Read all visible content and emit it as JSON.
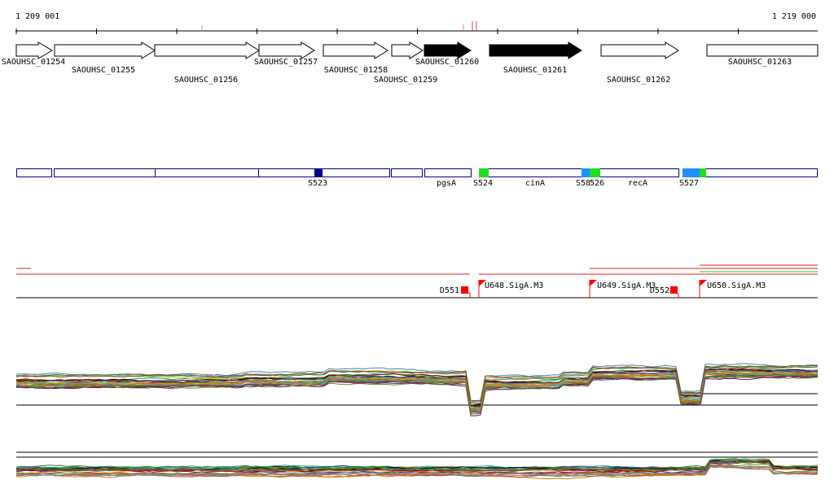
{
  "ruler": {
    "start_label": "1 209 001",
    "end_label": "1 219 000"
  },
  "genes": [
    {
      "name": "SAOUHSC_01254",
      "filled": false
    },
    {
      "name": "SAOUHSC_01255",
      "filled": false
    },
    {
      "name": "SAOUHSC_01256",
      "filled": false
    },
    {
      "name": "SAOUHSC_01257",
      "filled": false
    },
    {
      "name": "SAOUHSC_01258",
      "filled": false
    },
    {
      "name": "SAOUHSC_01259",
      "filled": false
    },
    {
      "name": "SAOUHSC_01260",
      "filled": true
    },
    {
      "name": "SAOUHSC_01261",
      "filled": true
    },
    {
      "name": "SAOUHSC_01262",
      "filled": false
    },
    {
      "name": "SAOUHSC_01263",
      "filled": false
    }
  ],
  "segment_labels": [
    "S523",
    "pgsA",
    "S524",
    "cinA",
    "S58",
    "526",
    "recA",
    "S527"
  ],
  "markers": [
    "D551",
    "U648.SigA.M3",
    "U649.SigA.M3",
    "D552",
    "U650.SigA.M3"
  ],
  "colors": {
    "segment_outline": "#00008b",
    "highlight_dark_blue": "#00008b",
    "highlight_green": "#22dd22",
    "highlight_light_blue": "#1e90ff",
    "marker_red": "#ff0000",
    "arrow_filled": "#000000"
  }
}
